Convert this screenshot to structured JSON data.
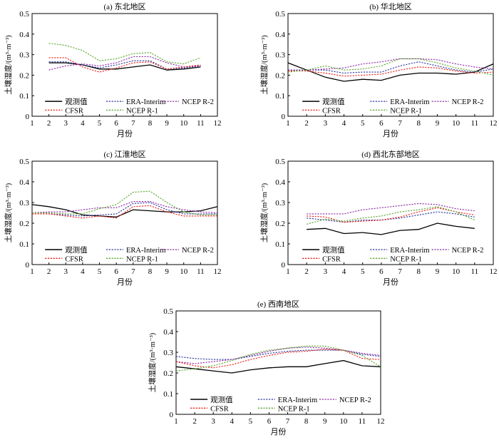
{
  "chart_data": [
    {
      "type": "line",
      "title": "(a) 东北地区",
      "xlabel": "月份",
      "ylabel": "土壤湿度/(m³·m⁻³)",
      "xlim": [
        1,
        12
      ],
      "ylim": [
        0,
        0.5
      ],
      "xticks": [
        "1",
        "2",
        "3",
        "4",
        "5",
        "6",
        "7",
        "8",
        "9",
        "10",
        "11",
        "12"
      ],
      "yticks": [
        "0",
        "0.1",
        "0.2",
        "0.3",
        "0.4",
        "0.5"
      ],
      "x": [
        2,
        3,
        4,
        5,
        6,
        7,
        8,
        9,
        10,
        11
      ],
      "series": [
        {
          "name": "观测值",
          "values": [
            0.26,
            0.26,
            0.25,
            0.23,
            0.23,
            0.24,
            0.25,
            0.225,
            0.23,
            0.24
          ]
        },
        {
          "name": "ERA-Interim",
          "values": [
            0.265,
            0.265,
            0.25,
            0.235,
            0.25,
            0.27,
            0.27,
            0.23,
            0.235,
            0.245
          ]
        },
        {
          "name": "NCEP R-2",
          "values": [
            0.225,
            0.245,
            0.255,
            0.245,
            0.26,
            0.29,
            0.29,
            0.26,
            0.24,
            0.245
          ]
        },
        {
          "name": "CFSR",
          "values": [
            0.285,
            0.285,
            0.24,
            0.215,
            0.235,
            0.26,
            0.265,
            0.23,
            0.24,
            0.25
          ]
        },
        {
          "name": "NCEP R-1",
          "values": [
            0.355,
            0.345,
            0.32,
            0.27,
            0.28,
            0.305,
            0.31,
            0.265,
            0.255,
            0.285
          ]
        }
      ]
    },
    {
      "type": "line",
      "title": "(b) 华北地区",
      "xlabel": "月份",
      "ylabel": "土壤湿度/(m³·m⁻³)",
      "xlim": [
        1,
        12
      ],
      "ylim": [
        0,
        0.5
      ],
      "xticks": [
        "1",
        "2",
        "3",
        "4",
        "5",
        "6",
        "7",
        "8",
        "9",
        "10",
        "11",
        "12"
      ],
      "yticks": [
        "0",
        "0.1",
        "0.2",
        "0.3",
        "0.4",
        "0.5"
      ],
      "x": [
        1,
        2,
        3,
        4,
        5,
        6,
        7,
        8,
        9,
        10,
        11,
        12
      ],
      "series": [
        {
          "name": "观测值",
          "values": [
            0.26,
            0.225,
            0.19,
            0.17,
            0.18,
            0.175,
            0.2,
            0.21,
            0.21,
            0.205,
            0.215,
            0.255
          ]
        },
        {
          "name": "ERA-Interim",
          "values": [
            0.225,
            0.225,
            0.225,
            0.21,
            0.215,
            0.215,
            0.245,
            0.265,
            0.245,
            0.225,
            0.215,
            0.23
          ]
        },
        {
          "name": "NCEP R-2",
          "values": [
            0.225,
            0.225,
            0.23,
            0.235,
            0.255,
            0.265,
            0.28,
            0.28,
            0.275,
            0.255,
            0.24,
            0.23
          ]
        },
        {
          "name": "CFSR",
          "values": [
            0.22,
            0.22,
            0.21,
            0.195,
            0.2,
            0.205,
            0.225,
            0.24,
            0.235,
            0.22,
            0.21,
            0.215
          ]
        },
        {
          "name": "NCEP R-1",
          "values": [
            0.215,
            0.225,
            0.245,
            0.225,
            0.23,
            0.245,
            0.28,
            0.28,
            0.26,
            0.235,
            0.22,
            0.2
          ]
        }
      ]
    },
    {
      "type": "line",
      "title": "(c) 江淮地区",
      "xlabel": "月份",
      "ylabel": "土壤湿度/(m³·m⁻³)",
      "xlim": [
        1,
        12
      ],
      "ylim": [
        0,
        0.5
      ],
      "xticks": [
        "1",
        "2",
        "3",
        "4",
        "5",
        "6",
        "7",
        "8",
        "9",
        "10",
        "11",
        "12"
      ],
      "yticks": [
        "0",
        "0.1",
        "0.2",
        "0.3",
        "0.4",
        "0.5"
      ],
      "x": [
        1,
        2,
        3,
        4,
        5,
        6,
        7,
        8,
        9,
        10,
        11,
        12
      ],
      "series": [
        {
          "name": "观测值",
          "values": [
            0.29,
            0.28,
            0.265,
            0.24,
            0.235,
            0.23,
            0.265,
            0.26,
            0.255,
            0.255,
            0.26,
            0.28
          ]
        },
        {
          "name": "ERA-Interim",
          "values": [
            0.245,
            0.245,
            0.24,
            0.235,
            0.24,
            0.245,
            0.295,
            0.3,
            0.265,
            0.245,
            0.245,
            0.245
          ]
        },
        {
          "name": "NCEP R-2",
          "values": [
            0.25,
            0.255,
            0.255,
            0.265,
            0.275,
            0.275,
            0.305,
            0.305,
            0.28,
            0.265,
            0.255,
            0.25
          ]
        },
        {
          "name": "CFSR",
          "values": [
            0.245,
            0.245,
            0.235,
            0.225,
            0.235,
            0.225,
            0.28,
            0.285,
            0.255,
            0.235,
            0.235,
            0.235
          ]
        },
        {
          "name": "NCEP R-1",
          "values": [
            0.25,
            0.25,
            0.245,
            0.245,
            0.27,
            0.29,
            0.35,
            0.355,
            0.3,
            0.255,
            0.24,
            0.24
          ]
        }
      ]
    },
    {
      "type": "line",
      "title": "(d) 西北东部地区",
      "xlabel": "月份",
      "ylabel": "土壤湿度/(m³·m⁻³)",
      "xlim": [
        1,
        12
      ],
      "ylim": [
        0,
        0.5
      ],
      "xticks": [
        "1",
        "2",
        "3",
        "4",
        "5",
        "6",
        "7",
        "8",
        "9",
        "10",
        "11",
        "12"
      ],
      "yticks": [
        "0",
        "0.1",
        "0.2",
        "0.3",
        "0.4",
        "0.5"
      ],
      "x": [
        2,
        3,
        4,
        5,
        6,
        7,
        8,
        9,
        10,
        11
      ],
      "series": [
        {
          "name": "观测值",
          "values": [
            0.17,
            0.175,
            0.15,
            0.155,
            0.145,
            0.165,
            0.17,
            0.2,
            0.185,
            0.175
          ]
        },
        {
          "name": "ERA-Interim",
          "values": [
            0.225,
            0.215,
            0.205,
            0.215,
            0.215,
            0.225,
            0.24,
            0.255,
            0.245,
            0.23
          ]
        },
        {
          "name": "NCEP R-2",
          "values": [
            0.245,
            0.245,
            0.245,
            0.265,
            0.275,
            0.285,
            0.295,
            0.29,
            0.27,
            0.26
          ]
        },
        {
          "name": "CFSR",
          "values": [
            0.235,
            0.23,
            0.205,
            0.21,
            0.215,
            0.23,
            0.255,
            0.275,
            0.255,
            0.24
          ]
        },
        {
          "name": "NCEP R-1",
          "values": [
            0.195,
            0.22,
            0.21,
            0.225,
            0.235,
            0.255,
            0.265,
            0.28,
            0.255,
            0.215
          ]
        }
      ]
    },
    {
      "type": "line",
      "title": "(e) 西南地区",
      "xlabel": "月份",
      "ylabel": "土壤湿度/(m³·m⁻³)",
      "xlim": [
        1,
        12
      ],
      "ylim": [
        0,
        0.5
      ],
      "xticks": [
        "1",
        "2",
        "3",
        "4",
        "5",
        "6",
        "7",
        "8",
        "9",
        "10",
        "11",
        "12"
      ],
      "yticks": [
        "0",
        "0.1",
        "0.2",
        "0.3",
        "0.4",
        "0.5"
      ],
      "x": [
        1,
        2,
        3,
        4,
        5,
        6,
        7,
        8,
        9,
        10,
        11,
        12
      ],
      "series": [
        {
          "name": "观测值",
          "values": [
            0.23,
            0.22,
            0.21,
            0.2,
            0.215,
            0.225,
            0.23,
            0.23,
            0.245,
            0.26,
            0.235,
            0.23
          ]
        },
        {
          "name": "ERA-Interim",
          "values": [
            0.28,
            0.27,
            0.265,
            0.265,
            0.28,
            0.295,
            0.305,
            0.31,
            0.31,
            0.31,
            0.29,
            0.28
          ]
        },
        {
          "name": "NCEP R-2",
          "values": [
            0.255,
            0.245,
            0.255,
            0.265,
            0.285,
            0.305,
            0.32,
            0.325,
            0.32,
            0.31,
            0.295,
            0.285
          ]
        },
        {
          "name": "CFSR",
          "values": [
            0.255,
            0.235,
            0.225,
            0.24,
            0.265,
            0.285,
            0.3,
            0.305,
            0.315,
            0.31,
            0.27,
            0.265
          ]
        },
        {
          "name": "NCEP R-1",
          "values": [
            0.21,
            0.22,
            0.235,
            0.26,
            0.29,
            0.31,
            0.32,
            0.33,
            0.33,
            0.31,
            0.285,
            0.23
          ]
        }
      ]
    }
  ],
  "series_style": [
    {
      "name": "观测值",
      "color": "#000000",
      "dash": "solid"
    },
    {
      "name": "ERA-Interim",
      "color": "#2e3a9e",
      "dash": "dotted"
    },
    {
      "name": "NCEP R-2",
      "color": "#8e2ca6",
      "dash": "dotted"
    },
    {
      "name": "CFSR",
      "color": "#e8211c",
      "dash": "dotted"
    },
    {
      "name": "NCEP R-1",
      "color": "#5aa82c",
      "dash": "dotted"
    }
  ]
}
